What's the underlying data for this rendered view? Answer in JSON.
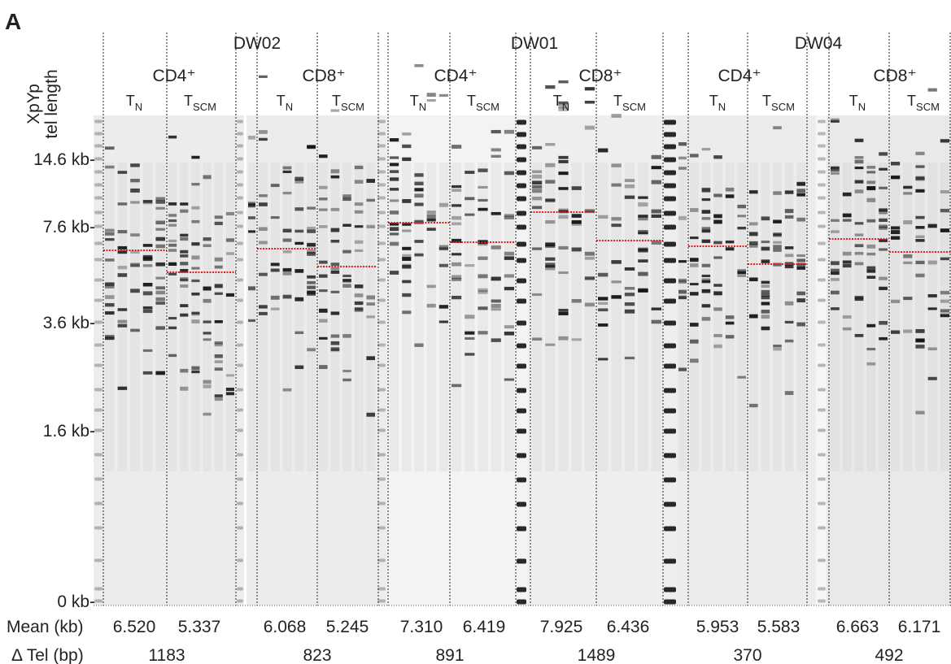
{
  "panel_label": "A",
  "y_axis_label": [
    "XpYp",
    "tel length"
  ],
  "size_markers": [
    "14.6 kb-",
    "7.6 kb-",
    "3.6 kb-",
    "1.6 kb-",
    "0 kb-"
  ],
  "row_labels": {
    "mean": "Mean (kb)",
    "delta_tel": "Δ Tel (bp)"
  },
  "donors": [
    {
      "name": "DW02",
      "groups": [
        {
          "cell_type": "CD4⁺",
          "subsets": [
            {
              "main": "T",
              "sub": "N",
              "mean": "6.520"
            },
            {
              "main": "T",
              "sub": "SCM",
              "mean": "5.337"
            }
          ],
          "delta_tel": "1183"
        },
        {
          "cell_type": "CD8⁺",
          "subsets": [
            {
              "main": "T",
              "sub": "N",
              "mean": "6.068"
            },
            {
              "main": "T",
              "sub": "SCM",
              "mean": "5.245"
            }
          ],
          "delta_tel": "823"
        }
      ]
    },
    {
      "name": "DW01",
      "groups": [
        {
          "cell_type": "CD4⁺",
          "subsets": [
            {
              "main": "T",
              "sub": "N",
              "mean": "7.310"
            },
            {
              "main": "T",
              "sub": "SCM",
              "mean": "6.419"
            }
          ],
          "delta_tel": "891"
        },
        {
          "cell_type": "CD8⁺",
          "subsets": [
            {
              "main": "T",
              "sub": "N",
              "mean": "7.925"
            },
            {
              "main": "T",
              "sub": "SCM",
              "mean": "6.436"
            }
          ],
          "delta_tel": "1489"
        }
      ]
    },
    {
      "name": "DW04",
      "groups": [
        {
          "cell_type": "CD4⁺",
          "subsets": [
            {
              "main": "T",
              "sub": "N",
              "mean": "5.953"
            },
            {
              "main": "T",
              "sub": "SCM",
              "mean": "5.583"
            }
          ],
          "delta_tel": "370"
        },
        {
          "cell_type": "CD8⁺",
          "subsets": [
            {
              "main": "T",
              "sub": "N",
              "mean": "6.663"
            },
            {
              "main": "T",
              "sub": "SCM",
              "mean": "6.171"
            }
          ],
          "delta_tel": "492"
        }
      ]
    }
  ]
}
